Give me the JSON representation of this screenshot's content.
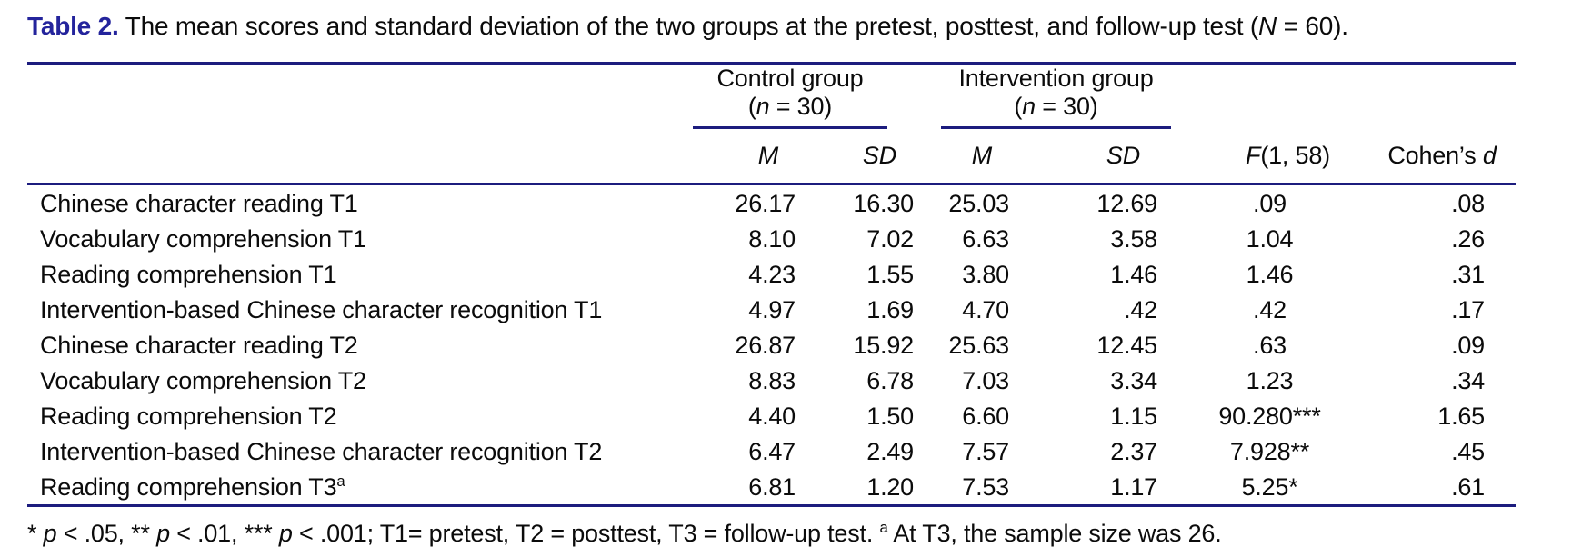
{
  "table": {
    "caption": {
      "label": "Table 2.",
      "text_before_N": " The mean scores and standard deviation of the two groups at the pretest, posttest, and follow-up test (",
      "N_symbol": "N",
      "text_after_N": " = 60)."
    },
    "groups": {
      "control": {
        "name": "Control group",
        "n_pre": "(",
        "n_symbol": "n",
        "n_post": " = 30)"
      },
      "intervention": {
        "name": "Intervention group",
        "n_pre": "(",
        "n_symbol": "n",
        "n_post": " = 30)"
      }
    },
    "columns": {
      "m": "M",
      "sd": "SD",
      "f_symbol": "F",
      "f_args": "(1, 58)",
      "cohens_text": "Cohen’s ",
      "d_symbol": "d"
    },
    "rows": [
      {
        "label": "Chinese character reading T1",
        "m1": "26.17",
        "sd1": "16.30",
        "m2": "25.03",
        "sd2": "12.69",
        "f": ".09",
        "d": ".08"
      },
      {
        "label": "Vocabulary comprehension T1",
        "m1": "8.10",
        "sd1": "7.02",
        "m2": "6.63",
        "sd2": "3.58",
        "f": "1.04",
        "d": ".26"
      },
      {
        "label": "Reading comprehension T1",
        "m1": "4.23",
        "sd1": "1.55",
        "m2": "3.80",
        "sd2": "1.46",
        "f": "1.46",
        "d": ".31"
      },
      {
        "label": "Intervention-based Chinese character recognition T1",
        "m1": "4.97",
        "sd1": "1.69",
        "m2": "4.70",
        "sd2": ".42",
        "f": ".42",
        "d": ".17"
      },
      {
        "label": "Chinese character reading T2",
        "m1": "26.87",
        "sd1": "15.92",
        "m2": "25.63",
        "sd2": "12.45",
        "f": ".63",
        "d": ".09"
      },
      {
        "label": "Vocabulary comprehension T2",
        "m1": "8.83",
        "sd1": "6.78",
        "m2": "7.03",
        "sd2": "3.34",
        "f": "1.23",
        "d": ".34"
      },
      {
        "label": "Reading comprehension T2",
        "m1": "4.40",
        "sd1": "1.50",
        "m2": "6.60",
        "sd2": "1.15",
        "f": "90.280***",
        "d": "1.65"
      },
      {
        "label": "Intervention-based Chinese character recognition T2",
        "m1": "6.47",
        "sd1": "2.49",
        "m2": "7.57",
        "sd2": "2.37",
        "f": "7.928**",
        "d": ".45"
      },
      {
        "label": "Reading comprehension T3",
        "label_sup": "a",
        "m1": "6.81",
        "sd1": "1.20",
        "m2": "7.53",
        "sd2": "1.17",
        "f": "5.25*",
        "d": ".61"
      }
    ],
    "footnote": {
      "s1": "* ",
      "p1": "p",
      "s2": " < .05, ** ",
      "p2": "p",
      "s3": " < .01, *** ",
      "p3": "p",
      "s4": " < .001; T1= pretest, T2 = posttest, T3 = follow-up test. ",
      "sup": "a",
      "s5": " At T3, the sample size was 26."
    },
    "colors": {
      "rule": "#1c1c7e",
      "caption_label": "#24249c",
      "text": "#0b0b0b",
      "background": "#ffffff"
    }
  }
}
